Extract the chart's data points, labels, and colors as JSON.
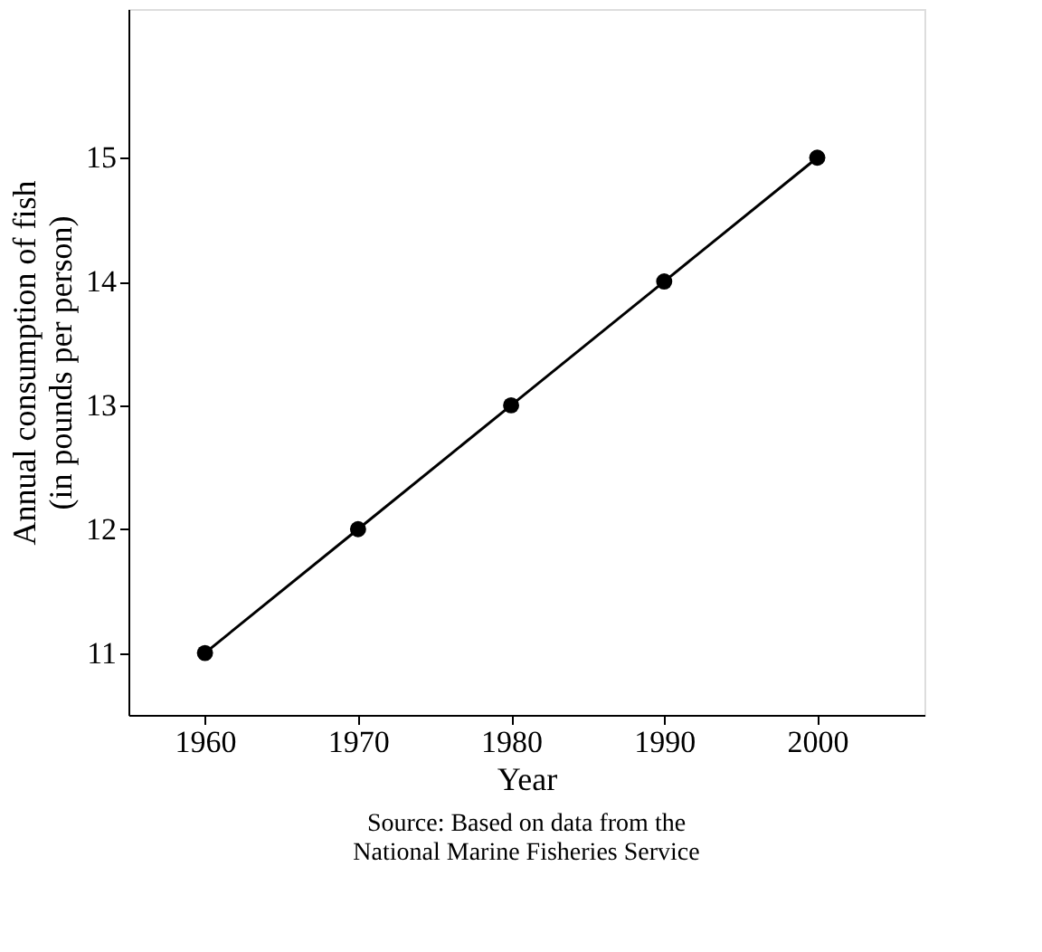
{
  "chart_data": {
    "type": "line",
    "xlabel": "Year",
    "ylabel": "Annual consumption of fish\n(in pounds per person)",
    "annotations": [
      "Source: Based on data from the\nNational Marine Fisheries Service"
    ],
    "x": [
      1960,
      1970,
      1980,
      1990,
      2000
    ],
    "series": [
      {
        "color": "#000000",
        "values": [
          11,
          12,
          13,
          14,
          15
        ]
      }
    ],
    "xlim": [
      1955,
      2007
    ],
    "ylim": [
      10.5,
      16.2
    ],
    "xticks": [
      1960,
      1970,
      1980,
      1990,
      2000
    ],
    "yticks": [
      11,
      12,
      13,
      14,
      15
    ],
    "grid": false,
    "marker": "circle",
    "line_style": "solid"
  }
}
